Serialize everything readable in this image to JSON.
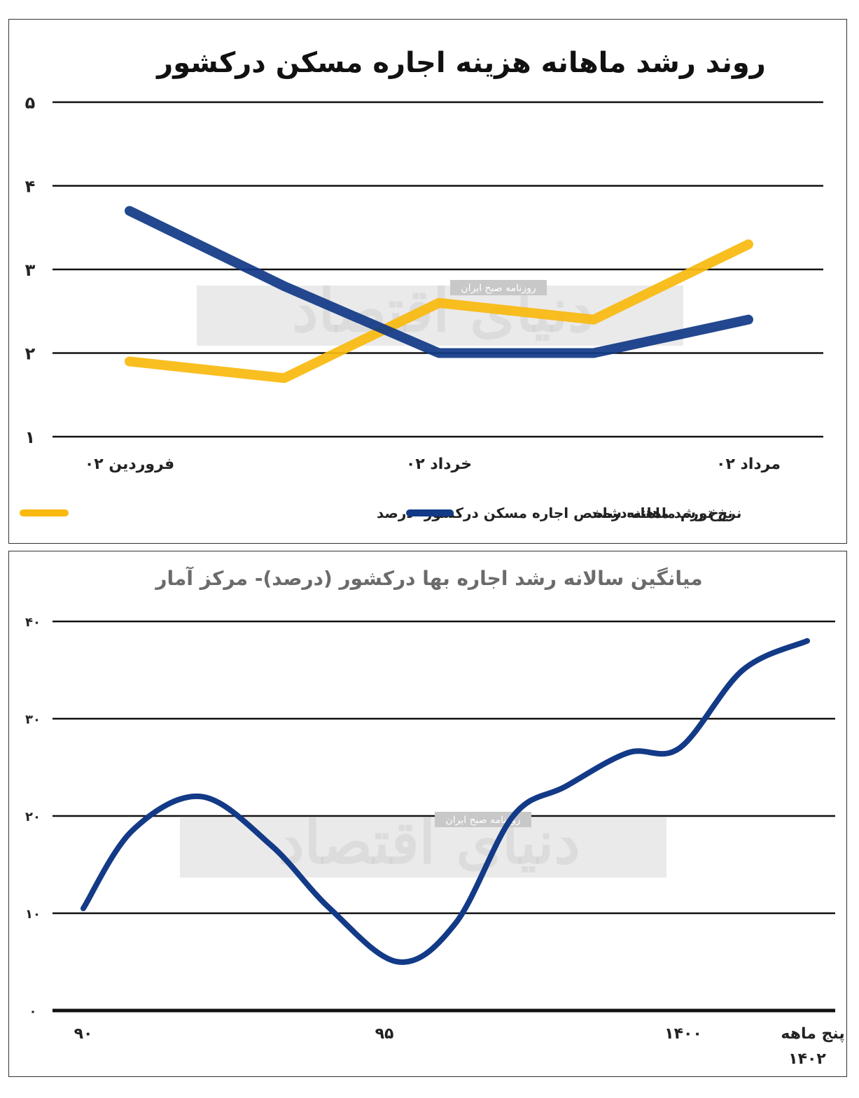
{
  "chart_data": [
    {
      "type": "line",
      "title": "روند رشد ماهانه هزینه اجاره مسکن درکشور",
      "y_ticks": [
        "۱",
        "۲",
        "۳",
        "۴",
        "۵"
      ],
      "ylim": [
        1,
        5
      ],
      "x_ticks": [
        {
          "label": "فروردین ۰۲",
          "x": 1
        },
        {
          "label": "خرداد ۰۲",
          "x": 3
        },
        {
          "label": "مرداد ۰۲",
          "x": 5
        }
      ],
      "x": [
        1,
        2,
        3,
        4,
        5
      ],
      "series": [
        {
          "name": "نرخ رشد ماهانه شاخص اجاره مسکن درکشور- درصد",
          "color": "#F9B90F",
          "values": [
            1.9,
            1.7,
            2.6,
            2.4,
            3.3
          ]
        },
        {
          "name": "نرخ تورم ماهانه-درصد",
          "color": "#123A87",
          "values": [
            3.7,
            2.8,
            2.0,
            2.0,
            2.4
          ]
        }
      ],
      "grid": true,
      "legend": "bottom"
    },
    {
      "type": "line",
      "title": "میانگین سالانه رشد اجاره بها درکشور (درصد)- مرکز آمار",
      "y_ticks": [
        "۰",
        "۱۰",
        "۲۰",
        "۳۰",
        "۴۰"
      ],
      "ylim": [
        0,
        40
      ],
      "x_ticks": [
        {
          "label": "۹۰",
          "x": 90
        },
        {
          "label": "۹۵",
          "x": 95
        },
        {
          "label": "۱۴۰۰",
          "x": 1400
        },
        {
          "label": "پنج ماهه",
          "label2": "۱۴۰۲",
          "x": 1402
        }
      ],
      "x": [
        90,
        91,
        92,
        93,
        94,
        95,
        96,
        97,
        98,
        99,
        1400,
        1401,
        1402
      ],
      "series": [
        {
          "name": "",
          "color": "#123A87",
          "values": [
            10.5,
            18.5,
            22.0,
            17.0,
            10.5,
            5.0,
            9.0,
            20.0,
            23.0,
            26.5,
            27.0,
            35.0,
            38.0
          ]
        }
      ],
      "grid": true,
      "legend": "none"
    }
  ],
  "watermark": {
    "text": "دنیای اقتصاد",
    "tag": "روزنامه صبح ایران"
  }
}
